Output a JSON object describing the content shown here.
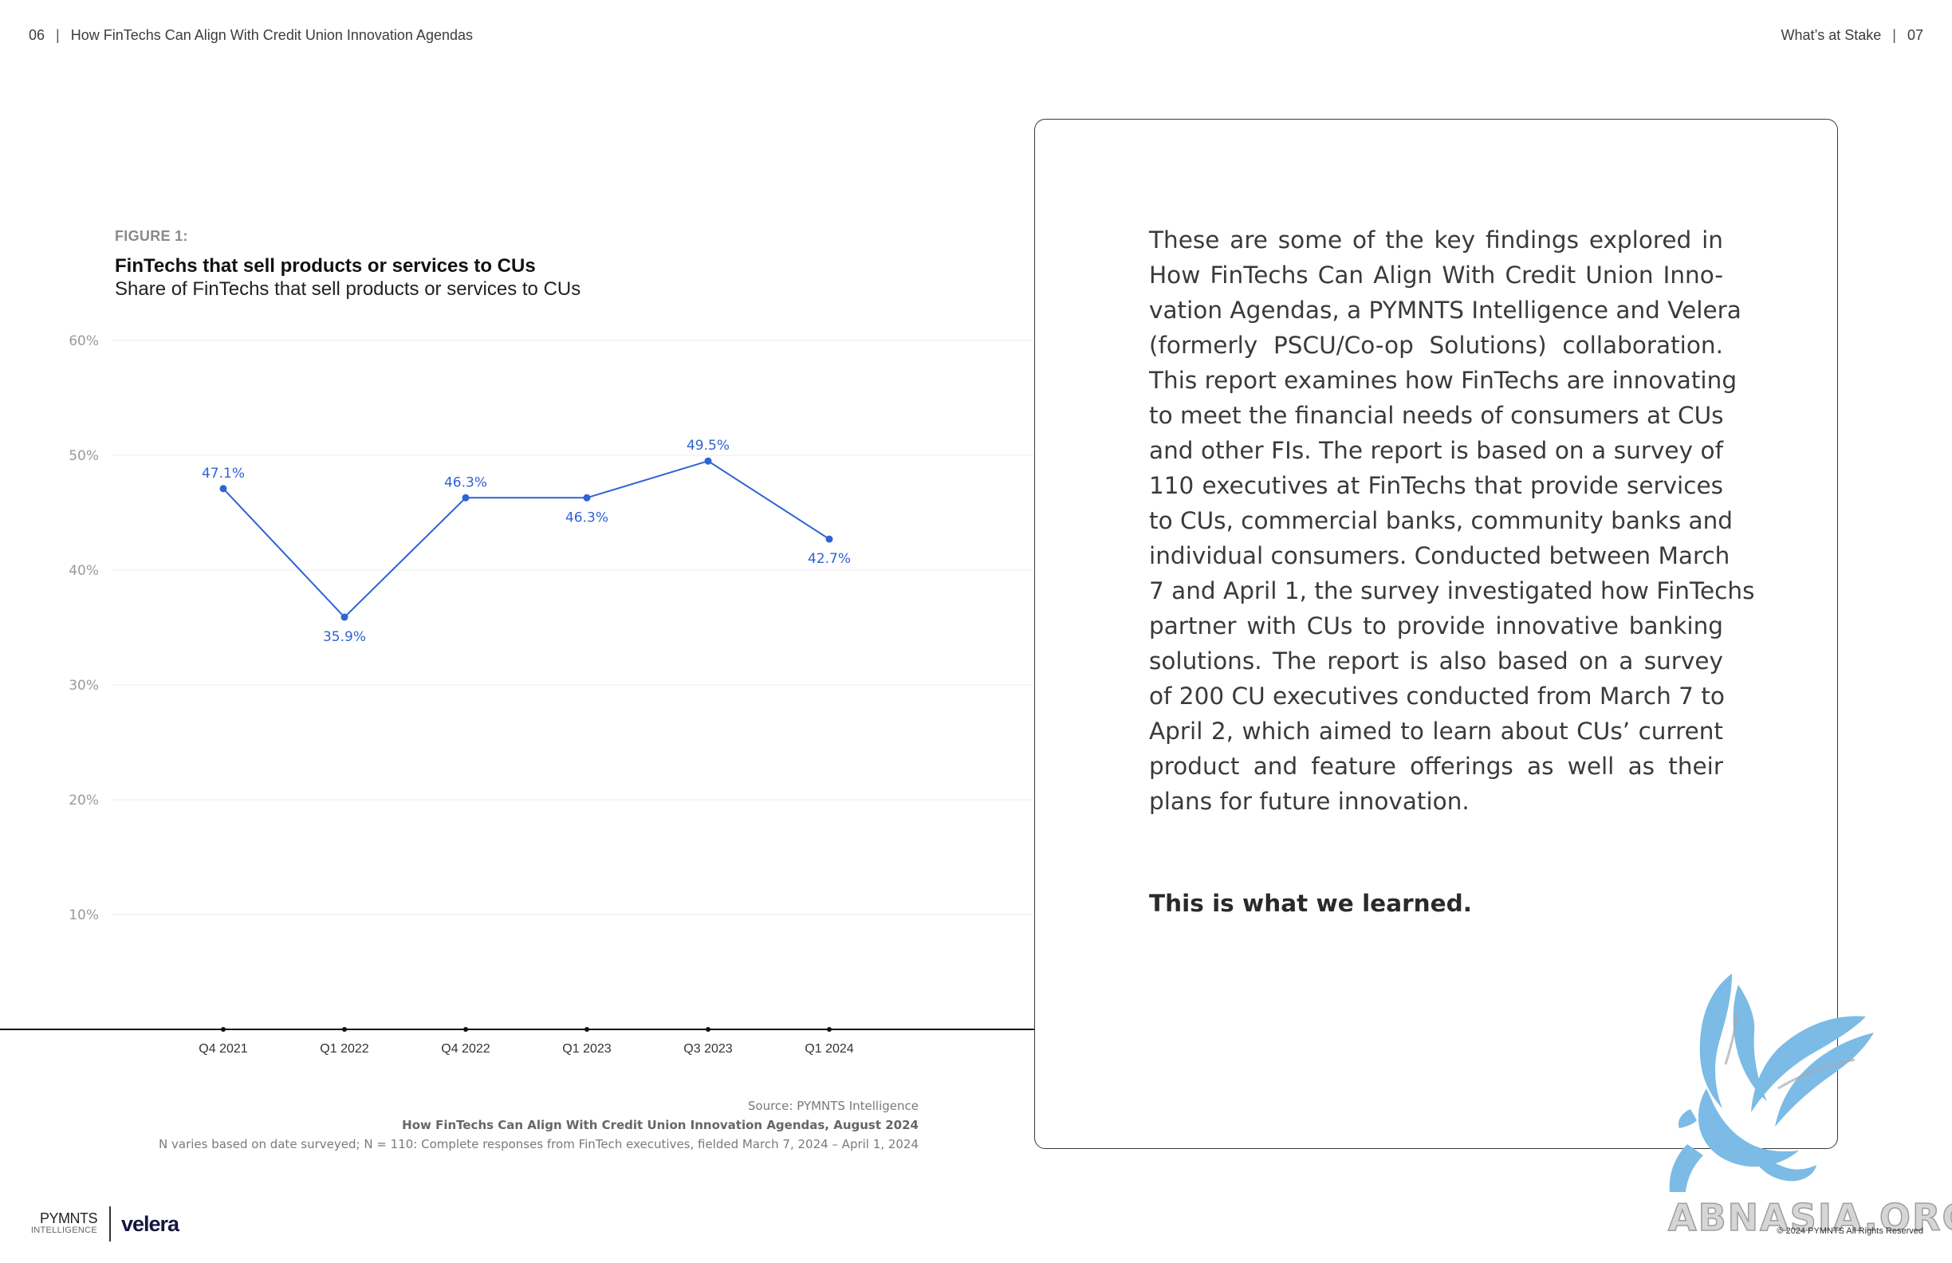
{
  "header": {
    "left_page": "06",
    "left_title": "How FinTechs Can Align With Credit Union Innovation Agendas",
    "right_title": "What’s at Stake",
    "right_page": "07",
    "separator": "|"
  },
  "figure": {
    "label": "FIGURE 1:",
    "title": "FinTechs that sell products or services to CUs",
    "subtitle": "Share of FinTechs that sell products or services to CUs"
  },
  "chart_data": {
    "type": "line",
    "title": "FinTechs that sell products or services to CUs",
    "subtitle": "Share of FinTechs that sell products or services to CUs",
    "x": [
      "Q4 2021",
      "Q1 2022",
      "Q4 2022",
      "Q1 2023",
      "Q3 2023",
      "Q1 2024"
    ],
    "values": [
      47.1,
      35.9,
      46.3,
      46.3,
      49.5,
      42.7
    ],
    "value_labels": [
      "47.1%",
      "35.9%",
      "46.3%",
      "46.3%",
      "49.5%",
      "42.7%"
    ],
    "label_position": [
      "above",
      "below",
      "above",
      "below",
      "above",
      "below"
    ],
    "y_ticks": [
      10,
      20,
      30,
      40,
      50,
      60
    ],
    "y_tick_labels": [
      "10%",
      "20%",
      "30%",
      "40%",
      "50%",
      "60%"
    ],
    "ylim": [
      0,
      60
    ],
    "xlabel": "",
    "ylabel": "",
    "grid": true,
    "legend": false,
    "color": "#2f63d4"
  },
  "source": {
    "line1": "Source: PYMNTS Intelligence",
    "line2": "How FinTechs Can Align With Credit Union Innovation Agendas, August 2024",
    "line3": "N varies based on date surveyed; N = 110: Complete responses from FinTech executives, fielded March 7, 2024 – April 1, 2024"
  },
  "panel": {
    "body_lines": [
      "These are some of the key findings explored in",
      "How FinTechs Can Align With Credit Union Inno-",
      "vation Agendas, a PYMNTS Intelligence and Velera",
      "(formerly PSCU/Co-op Solutions) collaboration.",
      "This report examines how FinTechs are innovating",
      "to meet the financial needs of consumers at CUs",
      "and other FIs. The report is based on a survey of",
      "110 executives at FinTechs that provide services",
      "to CUs, commercial banks, community banks and",
      "individual consumers. Conducted between March",
      "7 and April 1, the survey investigated how FinTechs",
      "partner with CUs to provide innovative banking",
      "solutions. The report is also based on a survey",
      "of 200 CU executives conducted from March 7 to",
      "April 2, which aimed to learn about CUs’ current",
      "product and feature offerings as well as their",
      "plans for future innovation."
    ],
    "closing": "This is what we learned."
  },
  "footer": {
    "logo_pymnts": "PYMNTS",
    "logo_pymnts_sub": "INTELLIGENCE",
    "logo_velera": "velera",
    "watermark": "ABNASIA.ORG",
    "copyright": "© 2024 PYMNTS All Rights Reserved"
  },
  "colors": {
    "accent": "#2f63d4",
    "watermark_blue": "#7bbbe6"
  }
}
